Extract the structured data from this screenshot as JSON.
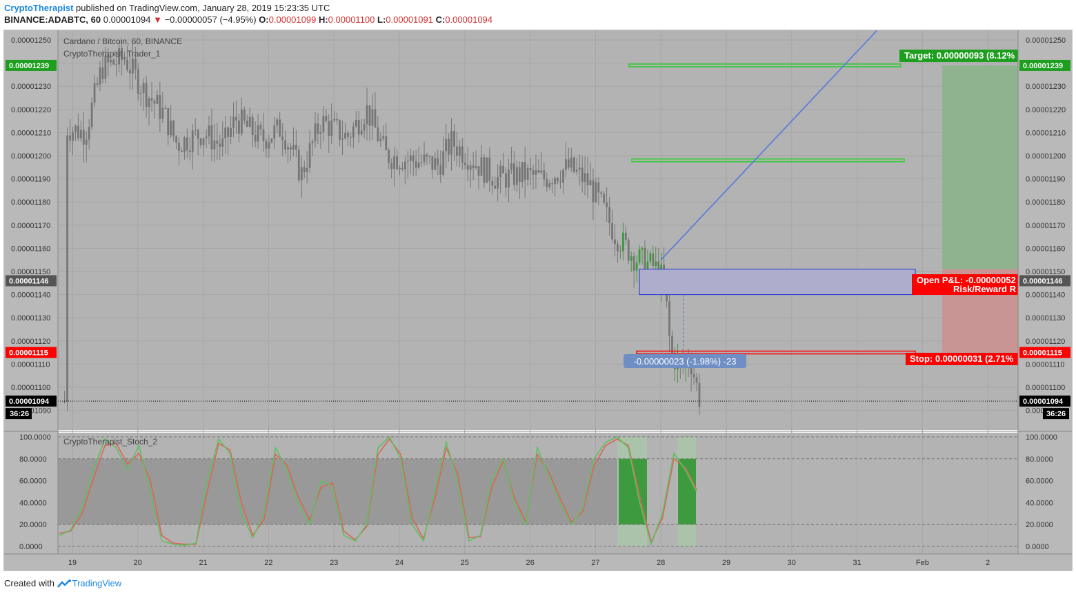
{
  "header": {
    "author": "CryptoTherapist",
    "published_text": "published on TradingView.com, January 28, 2019 15:23:35 UTC",
    "symbol_interval": "BINANCE:ADABTC, 60",
    "last_price": "0.00001094",
    "change_arrow": "▼",
    "change": "−0.00000057 (−4.95%)",
    "open_label": "O:",
    "open": "0.00001099",
    "high_label": "H:",
    "high": "0.00001100",
    "low_label": "L:",
    "low": "0.00001091",
    "close_label": "C:",
    "close": "0.00001094"
  },
  "footer": {
    "created_with": "Created with",
    "brand": "TradingView"
  },
  "colors": {
    "background": "#b3b3b3",
    "candle_down": "#757575",
    "candle_up": "#3a9a3a",
    "target_green": "#1e9e1e",
    "stop_red": "#ff0000",
    "position_blue": "#1f2fd6",
    "stoch_k": "#5fbf5f",
    "stoch_d": "#e0605a"
  },
  "chart_data": [
    {
      "type": "candlestick",
      "title": "Cardano / Bitcoin, 60, BINANCE",
      "indicator": "CryptoTherapist_Trader_1",
      "y_ticks": [
        "0.00001250",
        "0.00001240",
        "0.00001230",
        "0.00001220",
        "0.00001210",
        "0.00001200",
        "0.00001190",
        "0.00001180",
        "0.00001170",
        "0.00001160",
        "0.00001150",
        "0.00001140",
        "0.00001130",
        "0.00001120",
        "0.00001110",
        "0.00001100",
        "0.00001090"
      ],
      "ylim": [
        1.08e-05,
        1.256e-05
      ],
      "x_ticks": [
        "19",
        "20",
        "21",
        "22",
        "23",
        "24",
        "25",
        "26",
        "27",
        "28",
        "29",
        "30",
        "31",
        "Feb",
        "2"
      ],
      "series_approx": [
        {
          "day": 18.9,
          "close": 1.212e-05
        },
        {
          "day": 19.2,
          "close": 1.21e-05
        },
        {
          "day": 19.45,
          "close": 1.238e-05
        },
        {
          "day": 19.8,
          "close": 1.242e-05
        },
        {
          "day": 20.1,
          "close": 1.228e-05
        },
        {
          "day": 20.4,
          "close": 1.218e-05
        },
        {
          "day": 20.6,
          "close": 1.205e-05
        },
        {
          "day": 21.0,
          "close": 1.21e-05
        },
        {
          "day": 21.3,
          "close": 1.204e-05
        },
        {
          "day": 21.5,
          "close": 1.216e-05
        },
        {
          "day": 21.9,
          "close": 1.207e-05
        },
        {
          "day": 22.2,
          "close": 1.212e-05
        },
        {
          "day": 22.5,
          "close": 1.192e-05
        },
        {
          "day": 22.8,
          "close": 1.215e-05
        },
        {
          "day": 23.2,
          "close": 1.208e-05
        },
        {
          "day": 23.5,
          "close": 1.22e-05
        },
        {
          "day": 23.8,
          "close": 1.2e-05
        },
        {
          "day": 24.2,
          "close": 1.198e-05
        },
        {
          "day": 24.6,
          "close": 1.196e-05
        },
        {
          "day": 24.8,
          "close": 1.206e-05
        },
        {
          "day": 25.2,
          "close": 1.196e-05
        },
        {
          "day": 25.5,
          "close": 1.19e-05
        },
        {
          "day": 25.9,
          "close": 1.192e-05
        },
        {
          "day": 26.2,
          "close": 1.19e-05
        },
        {
          "day": 26.6,
          "close": 1.195e-05
        },
        {
          "day": 26.9,
          "close": 1.188e-05
        },
        {
          "day": 27.1,
          "close": 1.178e-05
        },
        {
          "day": 27.3,
          "close": 1.166e-05
        },
        {
          "day": 27.6,
          "close": 1.156e-05
        },
        {
          "day": 27.9,
          "close": 1.152e-05
        },
        {
          "day": 28.05,
          "close": 1.146e-05
        },
        {
          "day": 28.15,
          "close": 1.115e-05
        },
        {
          "day": 28.3,
          "close": 1.108e-05
        },
        {
          "day": 28.45,
          "close": 1.112e-05
        },
        {
          "day": 28.6,
          "close": 1.094e-05
        }
      ],
      "price_labels": {
        "target": "0.00001239",
        "entry": "0.00001146",
        "stop": "0.00001115",
        "current": "0.00001094",
        "countdown": "36:26"
      },
      "trade_levels": {
        "target": 1.239e-05,
        "take_profit_2": 1.198e-05,
        "entry_top": 1.151e-05,
        "entry_bottom": 1.14e-05,
        "stop": 1.115e-05
      },
      "trend_line": {
        "from": {
          "day": 28.0,
          "price": 1.155e-05
        },
        "to": {
          "day": 31.3,
          "price": 1.254e-05
        }
      },
      "annotations": {
        "target_text": "Target: 0.00000093 (8.12%",
        "open_pnl_text": "Open P&L: -0.00000052",
        "risk_reward_text": "Risk/Reward R",
        "stop_text": "Stop: 0.00000031 (2.71%",
        "measure_text": "-0.00000023 (-1.98%) -23"
      }
    },
    {
      "type": "line",
      "indicator": "CryptoTherapist_Stoch_2",
      "y_ticks": [
        "100.0000",
        "80.0000",
        "60.0000",
        "40.0000",
        "20.0000",
        "0.0000"
      ],
      "ylim": [
        0,
        100
      ],
      "bands": [
        20,
        80
      ],
      "series": [
        {
          "values": [
            10,
            15,
            35,
            70,
            98,
            90,
            70,
            92,
            50,
            5,
            2,
            1,
            3,
            60,
            98,
            85,
            30,
            8,
            30,
            90,
            70,
            40,
            20,
            60,
            55,
            10,
            5,
            20,
            90,
            100,
            80,
            20,
            5,
            50,
            95,
            60,
            5,
            10,
            60,
            80,
            40,
            20,
            90,
            65,
            40,
            20,
            35,
            80,
            95,
            100,
            90,
            40,
            2,
            30,
            85,
            70,
            50
          ]
        },
        {
          "values": [
            12,
            14,
            30,
            62,
            92,
            94,
            75,
            85,
            60,
            10,
            3,
            2,
            2,
            50,
            94,
            88,
            40,
            10,
            25,
            84,
            74,
            45,
            24,
            54,
            58,
            14,
            6,
            18,
            84,
            98,
            84,
            26,
            7,
            44,
            90,
            66,
            8,
            9,
            54,
            78,
            44,
            22,
            84,
            68,
            44,
            22,
            32,
            74,
            92,
            98,
            92,
            46,
            4,
            26,
            80,
            72,
            52
          ]
        }
      ]
    }
  ]
}
